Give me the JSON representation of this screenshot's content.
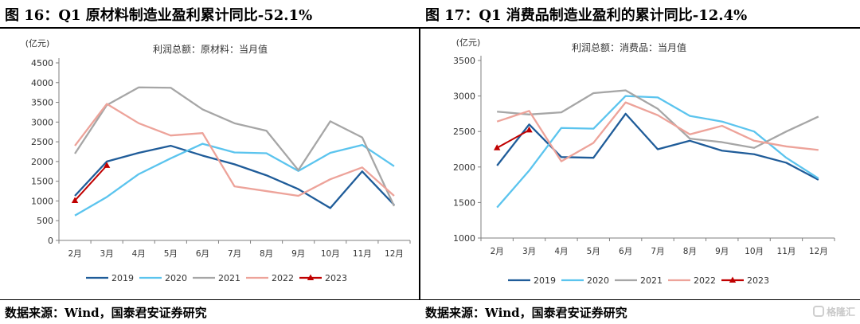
{
  "left": {
    "figure_title": "图 16：Q1 原材料制造业盈利累计同比-52.1%",
    "source": "数据来源：Wind，国泰君安证券研究"
  },
  "right": {
    "figure_title": "图 17：Q1 消费品制造业盈利的累计同比-12.4%",
    "source": "数据来源：Wind，国泰君安证券研究"
  },
  "watermark": "格隆汇",
  "colors": {
    "2019": "#1f5c99",
    "2020": "#5bc4ee",
    "2021": "#a6a6a6",
    "2022": "#eda39a",
    "2023": "#c00000"
  },
  "chart_data": [
    {
      "type": "line",
      "title": "利润总额：原材料：当月值",
      "ylabel": "(亿元)",
      "xlabel": "",
      "ylim": [
        0,
        4500
      ],
      "yticks": [
        0,
        500,
        1000,
        1500,
        2000,
        2500,
        3000,
        3500,
        4000,
        4500
      ],
      "grid": false,
      "legend": "bottom",
      "categories": [
        "2月",
        "3月",
        "4月",
        "5月",
        "6月",
        "7月",
        "8月",
        "9月",
        "10月",
        "11月",
        "12月"
      ],
      "series": [
        {
          "name": "2019",
          "values": [
            1130,
            2000,
            2220,
            2400,
            2150,
            1930,
            1650,
            1300,
            820,
            1750,
            900
          ]
        },
        {
          "name": "2020",
          "values": [
            630,
            1100,
            1680,
            2080,
            2450,
            2230,
            2210,
            1760,
            2220,
            2420,
            1880
          ]
        },
        {
          "name": "2021",
          "values": [
            2200,
            3430,
            3880,
            3870,
            3320,
            2970,
            2780,
            1780,
            3020,
            2610,
            870
          ]
        },
        {
          "name": "2022",
          "values": [
            2400,
            3460,
            2970,
            2660,
            2720,
            1370,
            1250,
            1130,
            1550,
            1850,
            1130
          ]
        },
        {
          "name": "2023",
          "values": [
            1010,
            1900,
            null,
            null,
            null,
            null,
            null,
            null,
            null,
            null,
            null
          ]
        }
      ]
    },
    {
      "type": "line",
      "title": "利润总额：消费品：当月值",
      "ylabel": "(亿元)",
      "xlabel": "",
      "ylim": [
        1000,
        3500
      ],
      "yticks": [
        1000,
        1500,
        2000,
        2500,
        3000,
        3500
      ],
      "grid": false,
      "legend": "bottom",
      "categories": [
        "2月",
        "3月",
        "4月",
        "5月",
        "6月",
        "7月",
        "8月",
        "9月",
        "10月",
        "11月",
        "12月"
      ],
      "series": [
        {
          "name": "2019",
          "values": [
            2020,
            2600,
            2140,
            2130,
            2750,
            2250,
            2370,
            2230,
            2180,
            2060,
            1820
          ]
        },
        {
          "name": "2020",
          "values": [
            1430,
            1950,
            2550,
            2540,
            3000,
            2980,
            2720,
            2640,
            2500,
            2130,
            1840
          ]
        },
        {
          "name": "2021",
          "values": [
            2780,
            2740,
            2770,
            3040,
            3080,
            2820,
            2400,
            2350,
            2270,
            2500,
            2710
          ]
        },
        {
          "name": "2022",
          "values": [
            2640,
            2790,
            2080,
            2340,
            2910,
            2730,
            2460,
            2580,
            2370,
            2290,
            2240
          ]
        },
        {
          "name": "2023",
          "values": [
            2270,
            2520,
            null,
            null,
            null,
            null,
            null,
            null,
            null,
            null,
            null
          ]
        }
      ]
    }
  ]
}
